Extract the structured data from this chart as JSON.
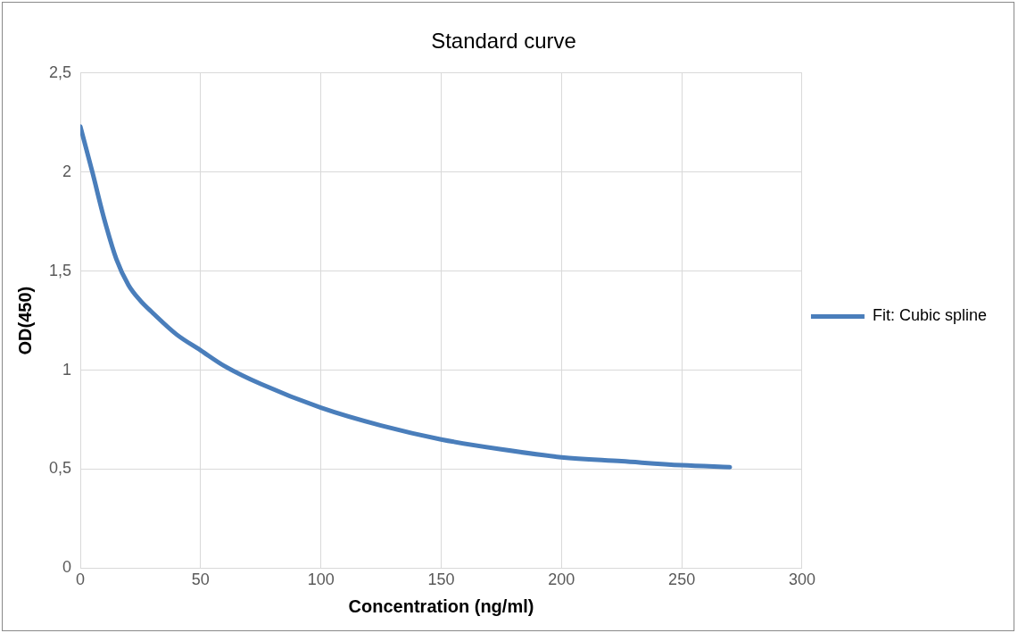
{
  "chart_data": {
    "type": "line",
    "title": "Standard curve",
    "xlabel": "Concentration (ng/ml)",
    "ylabel": "OD(450)",
    "series": [
      {
        "name": "Fit: Cubic spline",
        "color": "#4a7ebb",
        "x": [
          0,
          5,
          10,
          15,
          20,
          25,
          30,
          40,
          50,
          60,
          75,
          100,
          125,
          150,
          175,
          200,
          225,
          250,
          270
        ],
        "values": [
          2.23,
          2.0,
          1.76,
          1.56,
          1.43,
          1.35,
          1.29,
          1.18,
          1.1,
          1.02,
          0.93,
          0.81,
          0.72,
          0.65,
          0.6,
          0.56,
          0.54,
          0.52,
          0.51
        ]
      }
    ],
    "xlim": [
      0,
      300
    ],
    "xticks": [
      0,
      50,
      100,
      150,
      200,
      250,
      300
    ],
    "ylim": [
      0,
      2.5
    ],
    "yticks": [
      0,
      {
        "value": 0.5,
        "label": "0,5"
      },
      1,
      {
        "value": 1.5,
        "label": "1,5"
      },
      2,
      {
        "value": 2.5,
        "label": "2,5"
      }
    ],
    "grid": true,
    "legend": "right",
    "marker": "none",
    "line_style": "solid"
  }
}
